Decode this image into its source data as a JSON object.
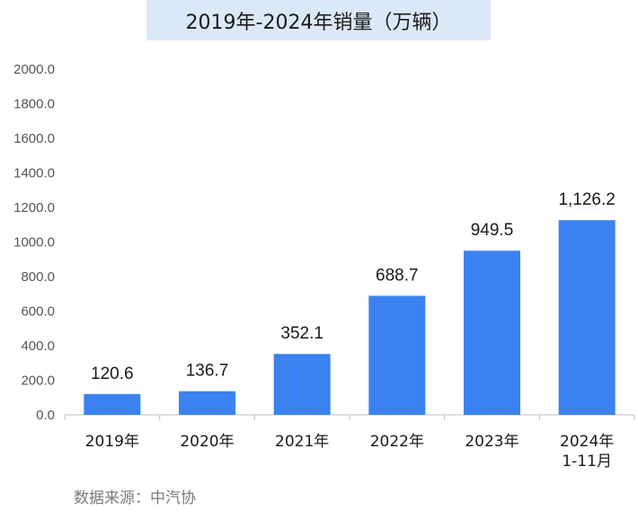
{
  "chart_data": {
    "type": "bar",
    "title": "2019年-2024年销量（万辆）",
    "categories": [
      "2019年",
      "2020年",
      "2021年",
      "2022年",
      "2023年",
      "2024年\n1-11月"
    ],
    "values": [
      120.6,
      136.7,
      352.1,
      688.7,
      949.5,
      1126.2
    ],
    "data_labels": [
      "120.6",
      "136.7",
      "352.1",
      "688.7",
      "949.5",
      "1,126.2"
    ],
    "yticks": [
      "0.0",
      "200.0",
      "400.0",
      "600.0",
      "800.0",
      "1000.0",
      "1200.0",
      "1400.0",
      "1600.0",
      "1800.0",
      "2000.0"
    ],
    "ylim": [
      0,
      2000
    ],
    "xlabel": "",
    "ylabel": "",
    "grid": false,
    "bar_color": "#3b82f0"
  },
  "source": "数据来源：中汽协"
}
